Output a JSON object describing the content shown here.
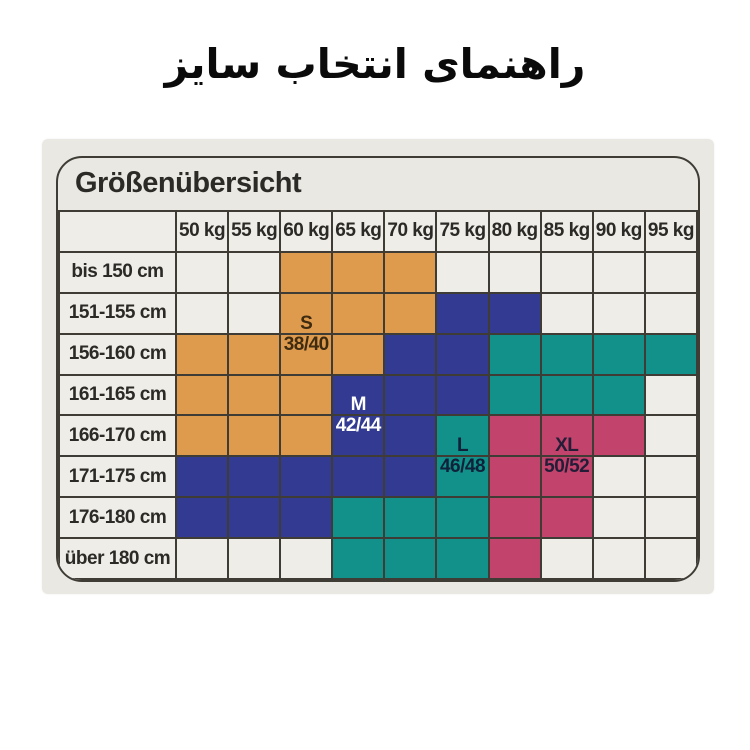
{
  "page_title": "راهنمای انتخاب سایز",
  "panel": {
    "title": "Größenübersicht"
  },
  "chart_data": {
    "type": "heatmap",
    "title": "Größenübersicht",
    "x_categories": [
      "50 kg",
      "55 kg",
      "60 kg",
      "65 kg",
      "70 kg",
      "75 kg",
      "80 kg",
      "85 kg",
      "90 kg",
      "95 kg"
    ],
    "y_categories": [
      "bis 150 cm",
      "151-155 cm",
      "156-160 cm",
      "161-165 cm",
      "166-170 cm",
      "171-175 cm",
      "176-180 cm",
      "über 180 cm"
    ],
    "cells": [
      [
        "",
        "",
        "S",
        "S",
        "S",
        "",
        "",
        "",
        "",
        ""
      ],
      [
        "",
        "",
        "S",
        "S",
        "S",
        "M",
        "M",
        "",
        "",
        ""
      ],
      [
        "S",
        "S",
        "S",
        "S",
        "M",
        "M",
        "L",
        "L",
        "L",
        "L"
      ],
      [
        "S",
        "S",
        "S",
        "M",
        "M",
        "M",
        "L",
        "L",
        "L",
        ""
      ],
      [
        "S",
        "S",
        "S",
        "M",
        "M",
        "L",
        "XL",
        "XL",
        "XL",
        ""
      ],
      [
        "M",
        "M",
        "M",
        "M",
        "M",
        "L",
        "XL",
        "XL",
        "",
        ""
      ],
      [
        "M",
        "M",
        "M",
        "L",
        "L",
        "L",
        "XL",
        "XL",
        "",
        ""
      ],
      [
        "",
        "",
        "",
        "L",
        "L",
        "L",
        "XL",
        "",
        "",
        ""
      ]
    ],
    "sizes": [
      {
        "code": "S",
        "range": "38/40",
        "color": "#df9b4d",
        "text_color": "#3e2b10",
        "label_col": 2,
        "label_rows_above": 2
      },
      {
        "code": "M",
        "range": "42/44",
        "color": "#323b91",
        "text_color": "#ffffff",
        "label_col": 3,
        "label_rows_above": 4
      },
      {
        "code": "L",
        "range": "46/48",
        "color": "#12908a",
        "text_color": "#10213a",
        "label_col": 5,
        "label_rows_above": 5
      },
      {
        "code": "XL",
        "range": "50/52",
        "color": "#c2436b",
        "text_color": "#241d38",
        "label_col": 7,
        "label_rows_above": 5
      }
    ],
    "empty_color": "#efede7",
    "grid_line_color": "#3e3c35",
    "card_background": "#eae8e2",
    "page_background": "#ffffff"
  }
}
